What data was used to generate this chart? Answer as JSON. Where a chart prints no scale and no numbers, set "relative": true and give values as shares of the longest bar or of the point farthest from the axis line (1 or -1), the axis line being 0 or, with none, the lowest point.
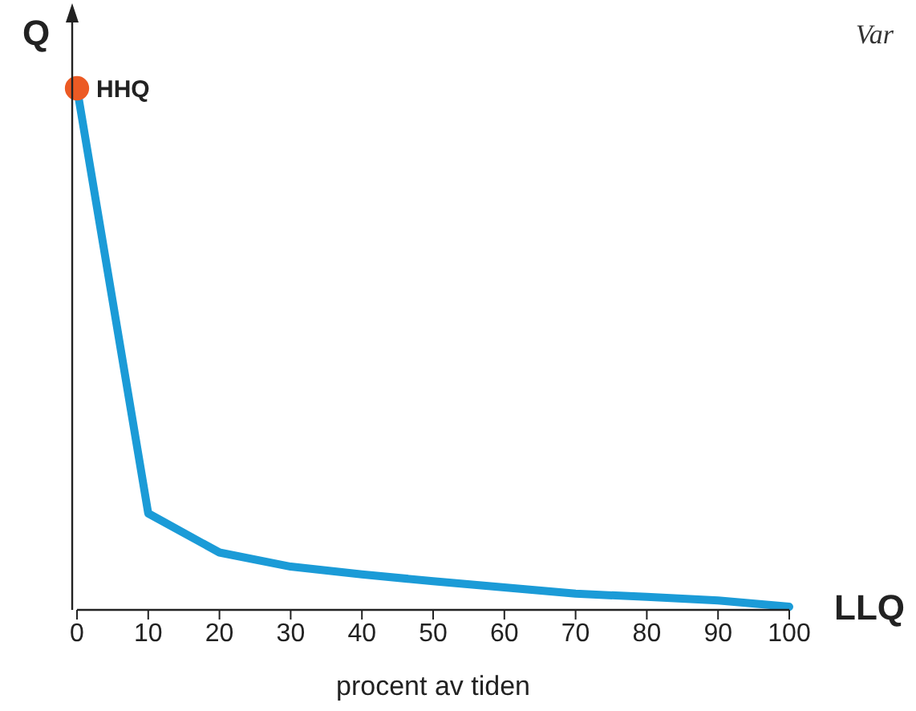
{
  "chart_data": {
    "type": "line",
    "ylabel": "Q",
    "xlabel": "procent av tiden",
    "relative": true,
    "x": [
      0,
      10,
      20,
      30,
      40,
      50,
      60,
      70,
      80,
      90,
      100
    ],
    "xlim": [
      0,
      100
    ],
    "xticks": [
      0,
      10,
      20,
      30,
      40,
      50,
      60,
      70,
      80,
      90,
      100
    ],
    "series": [
      {
        "color": "#1b9bd7",
        "values": [
          1,
          0.185,
          0.11,
          0.083,
          0.068,
          0.055,
          0.043,
          0.031,
          0.025,
          0.018,
          0.006
        ]
      },
      {
        "type": "scatter",
        "x": [
          0
        ],
        "values": [
          1
        ],
        "color": "#ec5a24",
        "marker": "circle"
      }
    ],
    "annotations": [
      {
        "text": "HHQ",
        "x": 0,
        "y": 1
      },
      {
        "text": "LLQ",
        "x": 100,
        "y": 0.006
      },
      "Var"
    ]
  }
}
